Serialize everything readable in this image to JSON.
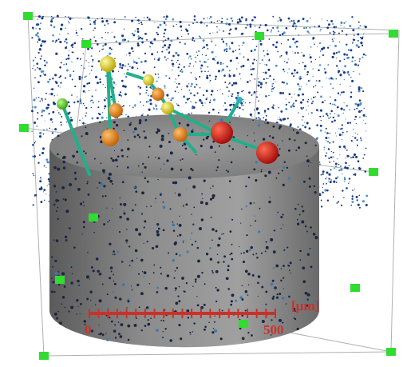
{
  "scale_bar": {
    "unit": "[µm]",
    "start_label": "0",
    "end_label": "500"
  }
}
